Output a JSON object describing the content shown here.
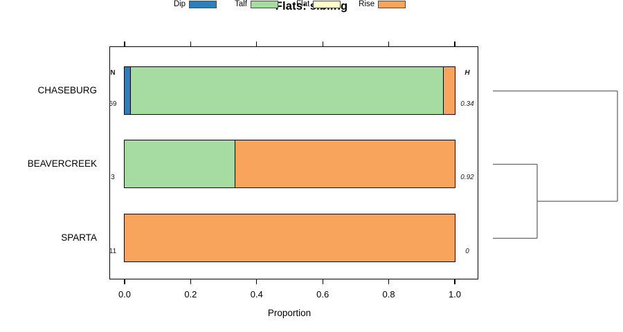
{
  "title": "Flats: sibling",
  "xlabel": "Proportion",
  "n_header": "N",
  "h_header": "H",
  "x_ticks": [
    "0.0",
    "0.2",
    "0.4",
    "0.6",
    "0.8",
    "1.0"
  ],
  "colors": {
    "dip": "#2E7EB9",
    "talf": "#A6DBA2",
    "flat": "#FFFFC9",
    "rise": "#F9A45D",
    "bar_border": "#000000",
    "dendrogram_line": "#666666"
  },
  "legend": [
    {
      "label": "Dip",
      "color": "#2E7EB9"
    },
    {
      "label": "Talf",
      "color": "#A6DBA2"
    },
    {
      "label": "Flat",
      "color": "#FFFFC9"
    },
    {
      "label": "Rise",
      "color": "#F9A45D"
    }
  ],
  "chart_data": {
    "type": "bar",
    "subtype": "horizontal-stacked-proportion",
    "title": "Flats: sibling",
    "xlabel": "Proportion",
    "xlim": [
      0,
      1
    ],
    "x_tick_values": [
      0.0,
      0.2,
      0.4,
      0.6,
      0.8,
      1.0
    ],
    "categories": [
      "CHASEBURG",
      "BEAVERCREEK",
      "SPARTA"
    ],
    "n_values": [
      "59",
      "3",
      "11"
    ],
    "h_values": [
      "0.34",
      "0.92",
      "0"
    ],
    "series": [
      {
        "name": "Dip",
        "color": "#2E7EB9",
        "values": [
          0.0169,
          0,
          0
        ]
      },
      {
        "name": "Talf",
        "color": "#A6DBA2",
        "values": [
          0.9492,
          0.3333,
          0
        ]
      },
      {
        "name": "Flat",
        "color": "#FFFFC9",
        "values": [
          0,
          0,
          0
        ]
      },
      {
        "name": "Rise",
        "color": "#F9A45D",
        "values": [
          0.0339,
          0.6667,
          1.0
        ]
      }
    ],
    "legend_position": "top",
    "grid": false,
    "dendrogram": {
      "orientation": "right",
      "leaves": [
        "CHASEBURG",
        "BEAVERCREEK",
        "SPARTA"
      ],
      "merges": [
        {
          "join": [
            "BEAVERCREEK",
            "SPARTA"
          ],
          "order": 1
        },
        {
          "join": [
            "CHASEBURG",
            "cluster-1"
          ],
          "order": 2
        }
      ]
    }
  }
}
